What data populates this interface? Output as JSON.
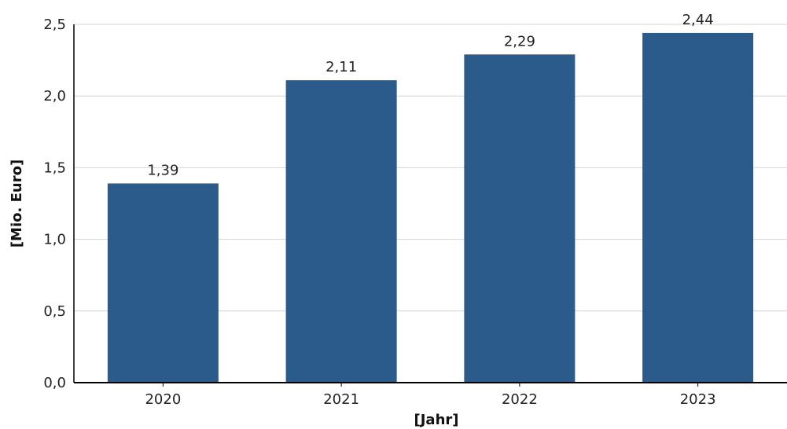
{
  "chart_data": {
    "type": "bar",
    "categories": [
      "2020",
      "2021",
      "2022",
      "2023"
    ],
    "values": [
      1.39,
      2.11,
      2.29,
      2.44
    ],
    "value_labels": [
      "1,39",
      "2,11",
      "2,29",
      "2,44"
    ],
    "title": "",
    "xlabel": "[Jahr]",
    "ylabel": "[Mio. Euro]",
    "ylim": [
      0,
      2.5
    ],
    "y_ticks": [
      {
        "value": 0.0,
        "label": "0,0"
      },
      {
        "value": 0.5,
        "label": "0,5"
      },
      {
        "value": 1.0,
        "label": "1,0"
      },
      {
        "value": 1.5,
        "label": "1,5"
      },
      {
        "value": 2.0,
        "label": "2,0"
      },
      {
        "value": 2.5,
        "label": "2,5"
      }
    ],
    "grid": true,
    "legend": "none",
    "colors": {
      "bar": "#2b5b8a",
      "grid": "#d4d4d4",
      "axis": "#000000"
    }
  }
}
